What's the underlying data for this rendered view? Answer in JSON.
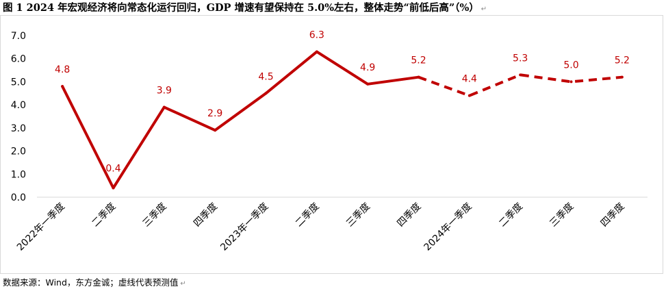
{
  "header": {
    "title": "图 1  2024 年宏观经济将向常态化运行回归，GDP 增速有望保持在 5.0%左右，整体走势“前低后高”（%）",
    "para_mark": "↵"
  },
  "footer": {
    "source": "数据来源：Wind，东方金诚；虚线代表预测值",
    "para_mark": "↵"
  },
  "colors": {
    "series": "#c00000",
    "axis": "#d9d9d9"
  },
  "chart_data": {
    "type": "line",
    "title": "",
    "xlabel": "",
    "ylabel": "",
    "ylim": [
      0,
      7
    ],
    "yticks": [
      "0.0",
      "1.0",
      "2.0",
      "3.0",
      "4.0",
      "5.0",
      "6.0",
      "7.0"
    ],
    "grid": false,
    "legend": "none",
    "categories": [
      "2022年一季度",
      "二季度",
      "三季度",
      "四季度",
      "2023年一季度",
      "二季度",
      "三季度",
      "四季度",
      "2024年一季度",
      "二季度",
      "三季度",
      "四季度"
    ],
    "series": [
      {
        "values": [
          4.8,
          0.4,
          3.9,
          2.9,
          4.5,
          6.3,
          4.9,
          5.2,
          4.4,
          5.3,
          5.0,
          5.2
        ],
        "labels": [
          "4.8",
          "0.4",
          "3.9",
          "2.9",
          "4.5",
          "6.3",
          "4.9",
          "5.2",
          "4.4",
          "5.3",
          "5.0",
          "5.2"
        ],
        "dashed_from_index": 7,
        "color": "#c00000"
      }
    ]
  }
}
